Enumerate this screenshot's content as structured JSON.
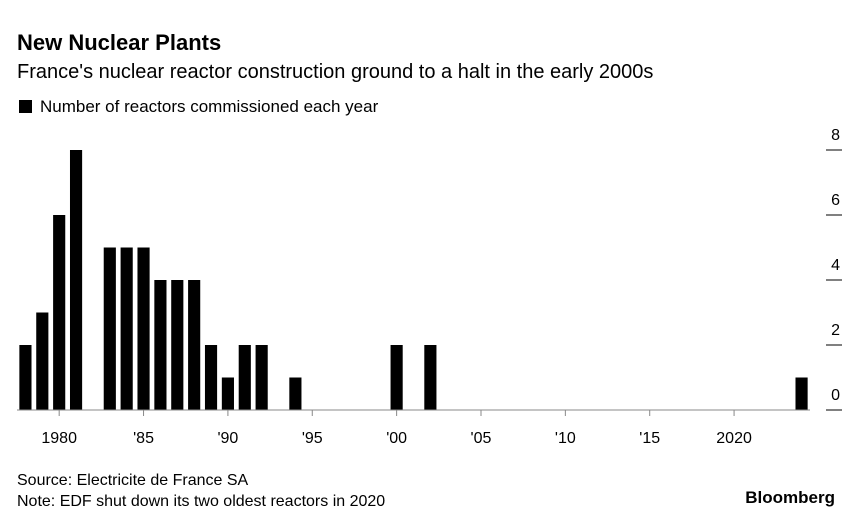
{
  "chart_data": {
    "type": "bar",
    "title": "New Nuclear Plants",
    "subtitle": "France's nuclear reactor construction ground to a halt in the early 2000s",
    "x": [
      1978,
      1979,
      1980,
      1981,
      1982,
      1983,
      1984,
      1985,
      1986,
      1987,
      1988,
      1989,
      1990,
      1991,
      1992,
      1993,
      1994,
      1995,
      1996,
      1997,
      1998,
      1999,
      2000,
      2001,
      2002,
      2003,
      2004,
      2005,
      2006,
      2007,
      2008,
      2009,
      2010,
      2011,
      2012,
      2013,
      2014,
      2015,
      2016,
      2017,
      2018,
      2019,
      2020,
      2021,
      2022,
      2023,
      2024
    ],
    "series": [
      {
        "name": "Number of reactors commissioned each year",
        "color": "#000000",
        "values": [
          2,
          3,
          6,
          8,
          0,
          5,
          5,
          5,
          4,
          4,
          4,
          2,
          1,
          2,
          2,
          0,
          1,
          0,
          0,
          0,
          0,
          0,
          2,
          0,
          2,
          0,
          0,
          0,
          0,
          0,
          0,
          0,
          0,
          0,
          0,
          0,
          0,
          0,
          0,
          0,
          0,
          0,
          0,
          0,
          0,
          0,
          1
        ]
      }
    ],
    "xlim": [
      1977.5,
      2024.5
    ],
    "xticks": [
      1980,
      {
        "value": 1985,
        "label": "'85"
      },
      {
        "value": 1990,
        "label": "'90"
      },
      {
        "value": 1995,
        "label": "'95"
      },
      {
        "value": 2000,
        "label": "'00"
      },
      {
        "value": 2005,
        "label": "'05"
      },
      {
        "value": 2010,
        "label": "'10"
      },
      {
        "value": 2015,
        "label": "'15"
      },
      2020
    ],
    "ylim": [
      0,
      8
    ],
    "yticks": [
      0,
      2,
      4,
      6,
      8
    ],
    "source": "Source: Electricite de France SA",
    "note": "Note: EDF shut down its two oldest reactors in 2020",
    "brand": "Bloomberg"
  }
}
